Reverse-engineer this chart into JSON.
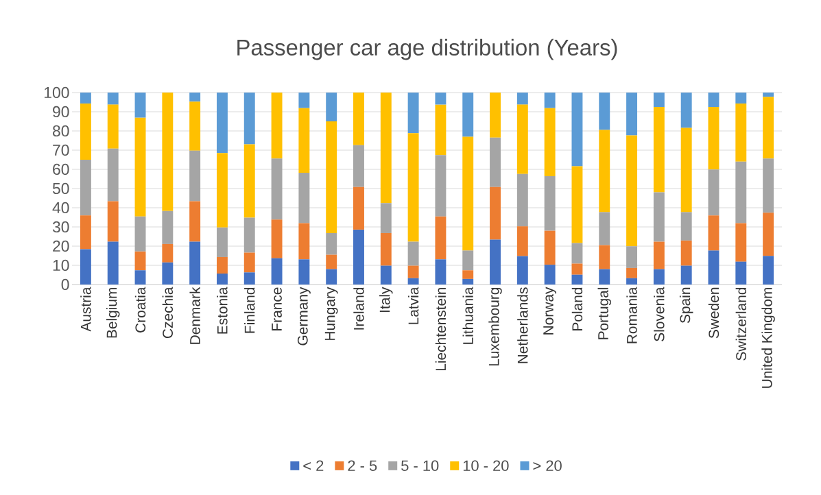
{
  "chart_data": {
    "type": "bar",
    "stacked": true,
    "title": "Passenger car age distribution (Years)",
    "categories": [
      "Austria",
      "Belgium",
      "Croatia",
      "Czechia",
      "Denmark",
      "Estonia",
      "Finland",
      "France",
      "Germany",
      "Hungary",
      "Ireland",
      "Italy",
      "Latvia",
      "Liechtenstein",
      "Lithuania",
      "Luxembourg",
      "Netherlands",
      "Norway",
      "Poland",
      "Portugal",
      "Romania",
      "Slovenia",
      "Spain",
      "Sweden",
      "Switzerland",
      "United Kingdom"
    ],
    "series": [
      {
        "name": "< 2",
        "color": "#4472c4",
        "values": [
          18.4,
          22.3,
          7.4,
          11.5,
          22.3,
          5.7,
          6.3,
          13.7,
          13.1,
          8.0,
          28.6,
          9.8,
          3.3,
          13.1,
          2.9,
          23.4,
          14.8,
          10.3,
          5.1,
          8.0,
          3.3,
          8.0,
          9.8,
          17.7,
          11.9,
          14.9
        ]
      },
      {
        "name": "2 - 5",
        "color": "#ed7d31",
        "values": [
          17.6,
          21.1,
          9.8,
          9.6,
          21.1,
          8.6,
          10.3,
          20.1,
          18.9,
          7.5,
          22.2,
          17.0,
          6.5,
          22.3,
          4.5,
          27.4,
          15.5,
          17.7,
          5.8,
          12.5,
          5.3,
          14.3,
          13.1,
          18.3,
          20.1,
          22.5
        ]
      },
      {
        "name": "5 - 10",
        "color": "#a5a5a5",
        "values": [
          29.0,
          27.4,
          18.2,
          17.2,
          26.3,
          15.4,
          18.2,
          31.8,
          26.2,
          11.3,
          21.8,
          15.6,
          12.5,
          32.0,
          10.3,
          25.7,
          27.3,
          28.4,
          10.7,
          17.2,
          11.3,
          25.7,
          14.8,
          23.9,
          32.0,
          28.2
        ]
      },
      {
        "name": "10 - 20",
        "color": "#ffc000",
        "values": [
          29.3,
          22.9,
          51.5,
          61.7,
          25.6,
          38.8,
          38.2,
          34.4,
          33.7,
          58.2,
          27.4,
          57.6,
          56.5,
          26.3,
          59.3,
          23.5,
          36.1,
          35.5,
          40.0,
          42.8,
          57.8,
          44.5,
          43.9,
          32.6,
          30.3,
          32.2
        ]
      },
      {
        "name": "> 20",
        "color": "#5b9bd5",
        "values": [
          5.7,
          6.3,
          13.1,
          0,
          4.7,
          31.5,
          27.0,
          0,
          8.1,
          15.0,
          0,
          0,
          21.2,
          6.3,
          23.0,
          0,
          6.3,
          8.1,
          38.4,
          19.5,
          22.3,
          7.5,
          18.4,
          7.5,
          5.7,
          2.2
        ]
      }
    ],
    "ylim": [
      0,
      100
    ],
    "yticks": [
      0,
      10,
      20,
      30,
      40,
      50,
      60,
      70,
      80,
      90,
      100
    ],
    "grid": "y",
    "legend": "bottom"
  }
}
